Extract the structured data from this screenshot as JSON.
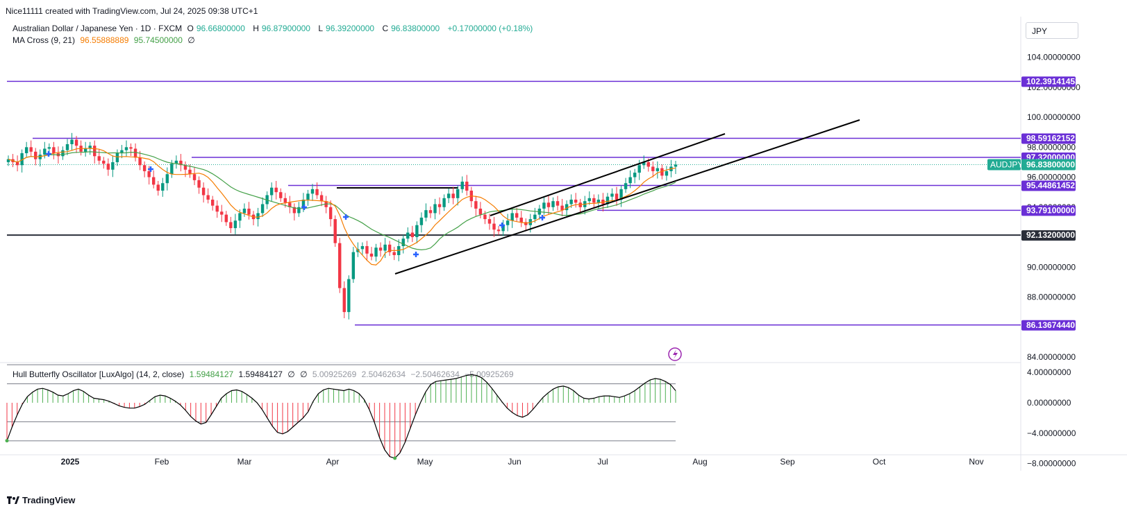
{
  "header": {
    "created_by": "Nice11111 created with TradingView.com, Jul 24, 2025 09:38 UTC+1"
  },
  "legend": {
    "symbol": "Australian Dollar / Japanese Yen · 1D · FXCM",
    "o_label": "O",
    "o_value": "96.66800000",
    "h_label": "H",
    "h_value": "96.87900000",
    "l_label": "L",
    "l_value": "96.39200000",
    "c_label": "C",
    "c_value": "96.83800000",
    "change": "+0.17000000 (+0.18%)",
    "ma_title": "MA Cross (9, 21)",
    "ma_fast": "96.55888889",
    "ma_slow": "95.74500000",
    "ma_zero": "∅"
  },
  "oscillator_legend": {
    "title": "Hull Butterfly Oscillator [LuxAlgo] (14, 2, close)",
    "v1": "1.59484127",
    "v2": "1.59484127",
    "z1": "∅",
    "z2": "∅",
    "v3": "5.00925269",
    "v4": "2.50462634",
    "v5": "−2.50462634",
    "v6": "−5.00925269"
  },
  "currency": "JPY",
  "footer": {
    "brand": "TradingView",
    "logo": "tradingview-logo-icon"
  },
  "colors": {
    "bull": "#089981",
    "bear": "#f23645",
    "level": "#6a2fd6",
    "dark_level": "#2a2e39",
    "ma_fast": "#f57c00",
    "ma_slow": "#43a047",
    "trend": "#000000",
    "osc_pos": "#4caf50",
    "osc_neg": "#f23645",
    "last_price": "#22ab94"
  },
  "chart_data": {
    "type": "candlestick",
    "symbol": "AUDJPY",
    "timeframe": "1D",
    "price_axis": {
      "ylim": [
        83.5,
        105
      ],
      "ticks": [
        "84.00000000",
        "86.00000000",
        "88.00000000",
        "90.00000000",
        "92.00000000",
        "94.00000000",
        "96.00000000",
        "98.00000000",
        "100.00000000",
        "102.00000000",
        "104.00000000"
      ]
    },
    "time_axis": {
      "labels": [
        "2025",
        "Feb",
        "Mar",
        "Apr",
        "May",
        "Jun",
        "Jul",
        "Aug",
        "Sep",
        "Oct",
        "Nov"
      ]
    },
    "horizontal_levels": [
      {
        "label": "102.39141453",
        "value": 102.39141453,
        "style": "purple"
      },
      {
        "label": "98.59162152",
        "value": 98.59162152,
        "style": "purple"
      },
      {
        "label": "97.32000000",
        "value": 97.32,
        "style": "purple"
      },
      {
        "label": "95.44861452",
        "value": 95.44861452,
        "style": "purple"
      },
      {
        "label": "93.79100000",
        "value": 93.791,
        "style": "purple"
      },
      {
        "label": "92.13200000",
        "value": 92.132,
        "style": "dark"
      },
      {
        "label": "86.13674440",
        "value": 86.1367444,
        "style": "purple"
      }
    ],
    "last_price": {
      "symbol_tag": "AUDJPY",
      "value": 96.838,
      "label": "96.83800000"
    },
    "trendlines": [
      {
        "from": [
          "Apr 21",
          89.6
        ],
        "to": [
          "Sep 24",
          100.0
        ]
      },
      {
        "from": [
          "May 20",
          93.9
        ],
        "to": [
          "Aug 8",
          99.0
        ]
      }
    ],
    "closes": [
      97.2,
      97.0,
      96.8,
      97.6,
      98.0,
      97.7,
      97.2,
      97.5,
      97.9,
      98.0,
      97.6,
      97.4,
      97.8,
      98.2,
      98.5,
      98.1,
      97.7,
      97.9,
      98.1,
      97.4,
      97.1,
      96.9,
      96.5,
      97.0,
      97.6,
      97.8,
      98.0,
      97.9,
      97.3,
      96.8,
      96.4,
      96.0,
      95.5,
      95.1,
      95.6,
      96.2,
      96.9,
      97.1,
      96.8,
      96.5,
      96.2,
      95.8,
      95.3,
      94.8,
      94.5,
      94.1,
      93.7,
      93.5,
      93.0,
      92.6,
      93.1,
      93.6,
      93.9,
      93.5,
      93.2,
      93.6,
      94.2,
      94.8,
      95.3,
      95.0,
      94.6,
      94.3,
      94.0,
      93.6,
      94.0,
      94.5,
      94.9,
      95.2,
      94.8,
      94.4,
      94.0,
      93.2,
      91.6,
      88.6,
      87.0,
      89.2,
      91.0,
      91.2,
      91.4,
      90.9,
      90.7,
      91.3,
      91.1,
      91.5,
      91.0,
      90.8,
      91.4,
      91.9,
      92.3,
      92.0,
      92.8,
      93.3,
      93.8,
      93.6,
      94.2,
      94.0,
      94.6,
      94.9,
      94.6,
      95.2,
      95.7,
      95.1,
      94.4,
      93.9,
      93.5,
      93.2,
      92.9,
      92.5,
      92.4,
      92.8,
      93.1,
      93.6,
      93.3,
      93.0,
      92.8,
      93.2,
      93.5,
      93.9,
      94.3,
      94.0,
      94.4,
      94.1,
      93.8,
      94.2,
      94.5,
      94.3,
      94.0,
      94.4,
      94.6,
      94.3,
      94.5,
      94.2,
      94.7,
      94.9,
      94.5,
      95.2,
      95.6,
      96.0,
      96.3,
      96.8,
      97.0,
      96.7,
      96.4,
      96.6,
      96.1,
      96.4,
      96.7,
      96.84
    ],
    "oscillator": {
      "title": "Hull Butterfly Oscillator [LuxAlgo] (14, 2, close)",
      "ylim": [
        -8,
        5
      ],
      "ticks": [
        "4.00000000",
        "0.00000000",
        "−4.00000000",
        "−8.00000000"
      ],
      "levels": [
        5.00925269,
        2.50462634,
        -2.50462634,
        -5.00925269
      ],
      "values": [
        -5.0,
        -3.2,
        -1.6,
        -0.2,
        0.8,
        1.4,
        1.8,
        1.9,
        1.7,
        1.4,
        1.0,
        0.9,
        1.2,
        1.6,
        1.8,
        1.5,
        1.0,
        0.6,
        0.5,
        0.4,
        0.2,
        -0.1,
        -0.4,
        -0.6,
        -0.7,
        -0.7,
        -0.5,
        -0.2,
        0.3,
        0.8,
        1.0,
        0.9,
        0.6,
        0.2,
        -0.3,
        -1.0,
        -1.8,
        -2.4,
        -2.8,
        -2.6,
        -1.6,
        -0.5,
        0.6,
        1.2,
        1.6,
        1.7,
        1.5,
        1.1,
        0.6,
        0.0,
        -0.9,
        -2.0,
        -3.1,
        -3.9,
        -4.1,
        -3.8,
        -3.2,
        -2.6,
        -2.0,
        -1.2,
        0.2,
        1.2,
        1.7,
        1.9,
        1.8,
        1.7,
        1.6,
        1.8,
        1.6,
        1.2,
        0.4,
        -0.9,
        -2.6,
        -4.6,
        -6.2,
        -7.1,
        -7.3,
        -6.6,
        -5.2,
        -3.4,
        -1.6,
        0.0,
        1.4,
        2.4,
        2.8,
        2.9,
        3.0,
        3.1,
        3.2,
        3.4,
        3.6,
        3.7,
        3.6,
        3.3,
        2.7,
        1.9,
        1.0,
        0.1,
        -0.7,
        -1.3,
        -1.7,
        -1.9,
        -1.6,
        -0.9,
        -0.1,
        0.7,
        1.3,
        1.8,
        2.1,
        2.2,
        2.0,
        1.6,
        1.0,
        0.6,
        0.5,
        0.6,
        0.8,
        0.9,
        0.9,
        0.8,
        0.7,
        0.9,
        1.2,
        1.6,
        2.1,
        2.6,
        3.0,
        3.2,
        3.1,
        2.8,
        2.4,
        1.6
      ]
    }
  }
}
